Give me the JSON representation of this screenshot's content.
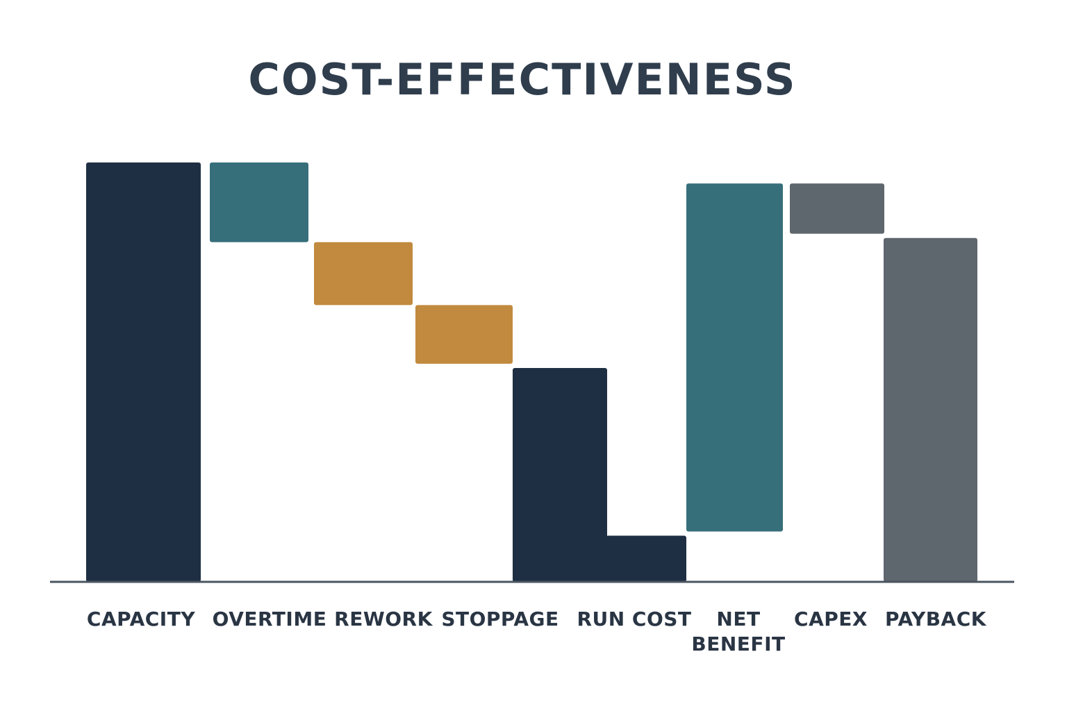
{
  "chart_data": {
    "type": "bar",
    "subtype": "waterfall",
    "title": "COST-EFFECTIVENESS",
    "xlabel": "",
    "ylabel": "",
    "categories": [
      "CAPACITY",
      "OVERTIME",
      "REWORK",
      "STOPPAGE",
      "RUN COST",
      "NET BENEFIT",
      "CAPEX",
      "PAYBACK"
    ],
    "category_lines": [
      [
        "CAPACITY"
      ],
      [
        "OVERTIME"
      ],
      [
        "REWORK"
      ],
      [
        "STOPPAGE"
      ],
      [
        "RUN COST"
      ],
      [
        "NET",
        "BENEFIT"
      ],
      [
        "CAPEX"
      ],
      [
        "PAYBACK"
      ]
    ],
    "bars": [
      {
        "category": "CAPACITY",
        "kind": "total",
        "start": 0,
        "end": 100,
        "color": "#1f2f43"
      },
      {
        "category": "OVERTIME",
        "kind": "delta",
        "start": 100,
        "end": 81,
        "color": "#366f7a"
      },
      {
        "category": "REWORK",
        "kind": "delta",
        "start": 81,
        "end": 66,
        "color": "#c18a3e"
      },
      {
        "category": "STOPPAGE",
        "kind": "delta",
        "start": 66,
        "end": 52,
        "color": "#c18a3e"
      },
      {
        "category": "RUN COST",
        "kind": "total",
        "start": 0,
        "end": 51,
        "color": "#1f2f43"
      },
      {
        "category": "RUN COST",
        "kind": "step",
        "start": 0,
        "end": 11,
        "color": "#1f2f43"
      },
      {
        "category": "NET BENEFIT",
        "kind": "delta",
        "start": 12,
        "end": 95,
        "color": "#366f7a"
      },
      {
        "category": "CAPEX",
        "kind": "delta",
        "start": 95,
        "end": 83,
        "color": "#5e666e"
      },
      {
        "category": "PAYBACK",
        "kind": "total",
        "start": 0,
        "end": 82,
        "color": "#5e666e"
      }
    ],
    "ylim": [
      0,
      100
    ],
    "grid": false,
    "legend": "none",
    "colors": {
      "baseline": "#4a5560",
      "label": "#2a3544",
      "title": "#2f3d4c"
    }
  }
}
